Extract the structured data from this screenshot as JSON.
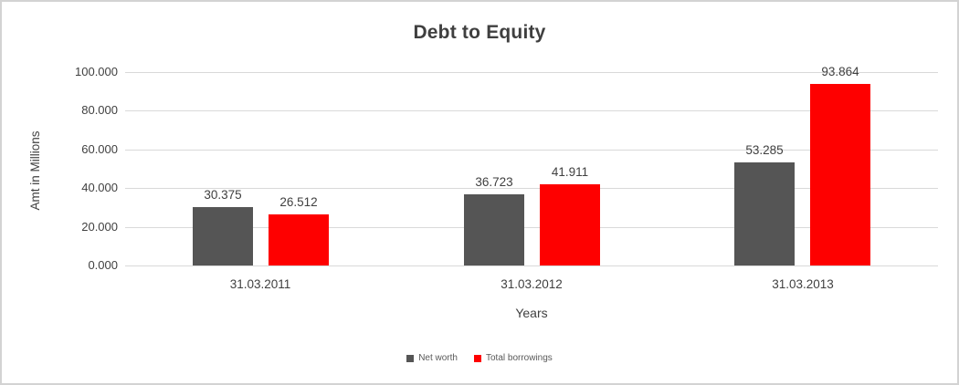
{
  "chart": {
    "title": "Debt to Equity",
    "y_axis_title": "Amt in Millions",
    "x_axis_title": "Years",
    "accent_colors": {
      "net_worth": "#555555",
      "total_borrowings": "#fe0000",
      "gridline": "#d9d9d9",
      "text": "#404040"
    }
  },
  "chart_data": {
    "type": "bar",
    "title": "Debt to Equity",
    "xlabel": "Years",
    "ylabel": "Amt in Millions",
    "categories": [
      "31.03.2011",
      "31.03.2012",
      "31.03.2013"
    ],
    "series": [
      {
        "name": "Net worth",
        "color": "#555555",
        "values": [
          30.375,
          36.723,
          53.285
        ],
        "labels": [
          "30.375",
          "36.723",
          "53.285"
        ]
      },
      {
        "name": "Total borrowings",
        "color": "#fe0000",
        "values": [
          26.512,
          41.911,
          93.864
        ],
        "labels": [
          "26.512",
          "41.911",
          "93.864"
        ]
      }
    ],
    "ylim": [
      0,
      100
    ],
    "y_ticks": {
      "values": [
        0,
        20,
        40,
        60,
        80,
        100
      ],
      "labels": [
        "0.000",
        "20.000",
        "40.000",
        "60.000",
        "80.000",
        "100.000"
      ]
    },
    "grid": true,
    "legend_position": "bottom"
  }
}
